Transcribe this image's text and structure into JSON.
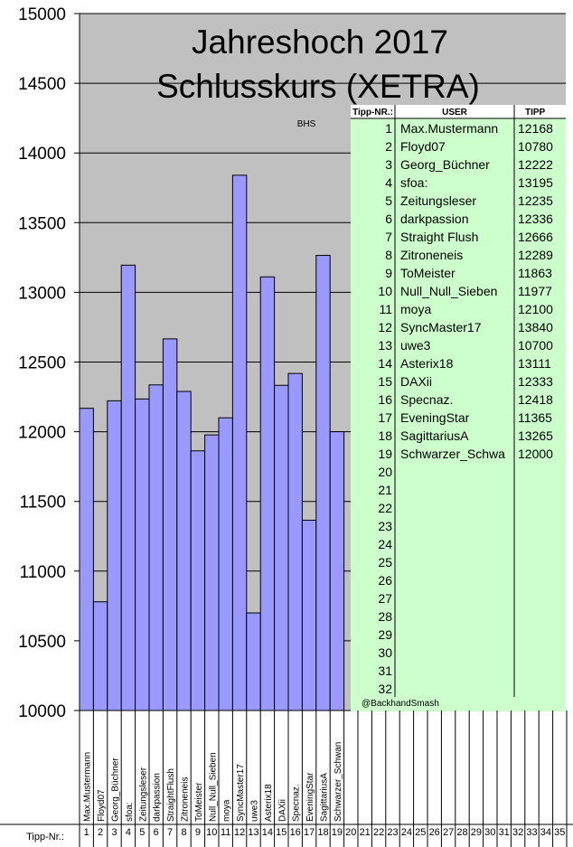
{
  "chart_data": {
    "type": "bar",
    "title": "Jahreshoch 2017",
    "subtitle": "Schlusskurs (XETRA)",
    "annotation": "BHS",
    "watermark": "@BackhandSmash",
    "ylim": [
      10000,
      15000
    ],
    "yticks": [
      "15000",
      "14500",
      "14000",
      "13500",
      "13000",
      "12500",
      "12000",
      "11500",
      "11000",
      "10500",
      "10000"
    ],
    "bar_color": "#9999ff",
    "plot_bg": "#c0c0c0",
    "categories": [
      "Max.Mustermann",
      "Floyd07",
      "Georg_Büchner",
      "sfoa:",
      "Zeitungsleser",
      "darkpassion",
      "StraightFlush",
      "Zitroneneis",
      "ToMeister",
      "Null_Null_Sieben",
      "moya",
      "SyncMaster17",
      "uwe3",
      "Asterix18",
      "DAXii",
      "Specnaz.",
      "EveningStar",
      "SagittariusA",
      "Schwarzer_Schwan"
    ],
    "values": [
      12168,
      10780,
      12222,
      13195,
      12235,
      12336,
      12666,
      12289,
      11863,
      11977,
      12100,
      13840,
      10700,
      13111,
      12333,
      12418,
      11365,
      13265,
      12000
    ],
    "x_row_label": "Tipp-Nr.:",
    "x_numbers": [
      "1",
      "2",
      "3",
      "4",
      "5",
      "6",
      "7",
      "8",
      "9",
      "10",
      "11",
      "12",
      "13",
      "14",
      "15",
      "16",
      "17",
      "18",
      "19",
      "20",
      "21",
      "22",
      "23",
      "24",
      "25",
      "26",
      "27",
      "28",
      "29",
      "30",
      "31",
      "32",
      "33",
      "34",
      "35"
    ]
  },
  "table": {
    "bg": "#ccffcc",
    "headers": [
      "Tipp-NR.:",
      "USER",
      "TIPP"
    ],
    "rows": [
      [
        "1",
        "Max.Mustermann",
        "12168"
      ],
      [
        "2",
        "Floyd07",
        "10780"
      ],
      [
        "3",
        "Georg_Büchner",
        "12222"
      ],
      [
        "4",
        "sfoa:",
        "13195"
      ],
      [
        "5",
        "Zeitungsleser",
        "12235"
      ],
      [
        "6",
        "darkpassion",
        "12336"
      ],
      [
        "7",
        "Straight Flush",
        "12666"
      ],
      [
        "8",
        "Zitroneneis",
        "12289"
      ],
      [
        "9",
        "ToMeister",
        "11863"
      ],
      [
        "10",
        "Null_Null_Sieben",
        "11977"
      ],
      [
        "11",
        "moya",
        "12100"
      ],
      [
        "12",
        "SyncMaster17",
        "13840"
      ],
      [
        "13",
        "uwe3",
        "10700"
      ],
      [
        "14",
        "Asterix18",
        "13111"
      ],
      [
        "15",
        "DAXii",
        "12333"
      ],
      [
        "16",
        "Specnaz.",
        "12418"
      ],
      [
        "17",
        "EveningStar",
        "11365"
      ],
      [
        "18",
        "SagittariusA",
        "13265"
      ],
      [
        "19",
        "Schwarzer_Schwa",
        "12000"
      ],
      [
        "20",
        "",
        ""
      ],
      [
        "21",
        "",
        ""
      ],
      [
        "22",
        "",
        ""
      ],
      [
        "23",
        "",
        ""
      ],
      [
        "24",
        "",
        ""
      ],
      [
        "25",
        "",
        ""
      ],
      [
        "26",
        "",
        ""
      ],
      [
        "27",
        "",
        ""
      ],
      [
        "28",
        "",
        ""
      ],
      [
        "29",
        "",
        ""
      ],
      [
        "30",
        "",
        ""
      ],
      [
        "31",
        "",
        ""
      ],
      [
        "32",
        "",
        ""
      ]
    ]
  }
}
